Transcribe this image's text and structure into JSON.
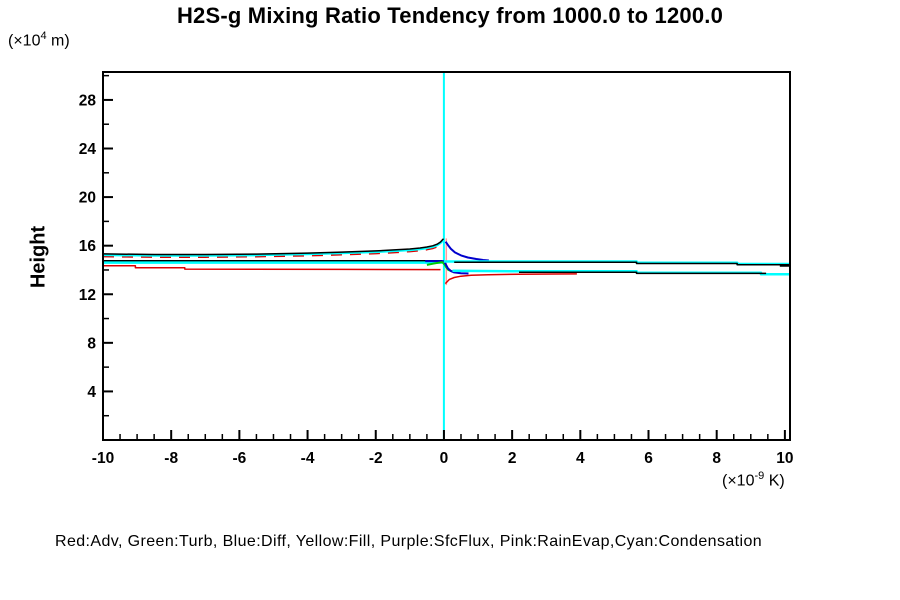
{
  "header": {
    "title": "H2S-g Mixing Ratio Tendency from 1000.0 to 1200.0"
  },
  "units": {
    "y": {
      "prefix": "(×10",
      "sup": "4",
      "suffix": " m)"
    },
    "x": {
      "prefix": "(×10",
      "sup": "-9",
      "suffix": " K)"
    }
  },
  "ylabel": "Height",
  "legend": {
    "text": "Red:Adv, Green:Turb, Blue:Diff, Yellow:Fill, Purple:SfcFlux, Pink:RainEvap,Cyan:Condensation"
  },
  "colors": {
    "black": "#000000",
    "red": "#DC0000",
    "green": "#00C800",
    "blue": "#0000CD",
    "cyan": "#00FFFF",
    "pink": "#FF9B9B"
  },
  "chart_data": {
    "type": "line",
    "title": "H2S-g Mixing Ratio Tendency from 1000.0 to 1200.0",
    "xlabel": "(x10^-9 K)",
    "ylabel": "Height (x10^4 m)",
    "legend_position": "bottom",
    "grid": false,
    "axes": {
      "xmin": -10,
      "xmax": 10.15,
      "ymin": 0,
      "ymax": 30.3,
      "x_major": {
        "values": [
          -10,
          -8,
          -6,
          -4,
          -2,
          0,
          2,
          4,
          6,
          8,
          10
        ],
        "labels": [
          "-10",
          "-8",
          "-6",
          "-4",
          "-2",
          "0",
          "2",
          "4",
          "6",
          "8",
          "10"
        ]
      },
      "x_minor_step": 0.5,
      "y_major": {
        "values": [
          4,
          8,
          12,
          16,
          20,
          24,
          28
        ],
        "labels": [
          "4",
          "8",
          "12",
          "16",
          "20",
          "24",
          "28"
        ]
      },
      "y_minor_step": 2
    },
    "series": [
      {
        "name": "condensation-zero-line",
        "color": "cyan",
        "width": 2,
        "points": [
          [
            0,
            0
          ],
          [
            0,
            30.28
          ]
        ]
      },
      {
        "name": "rainevap-spike",
        "color": "pink",
        "width": 1.5,
        "points": [
          [
            0.07,
            12.75
          ],
          [
            0.07,
            16.6
          ]
        ]
      },
      {
        "name": "adv-rise-left",
        "color": "red",
        "width": 1.5,
        "dash": "11 8",
        "points": [
          [
            -10,
            15.1
          ],
          [
            -8.5,
            15.05
          ],
          [
            -7,
            15.05
          ],
          [
            -5.5,
            15.09
          ],
          [
            -4,
            15.17
          ],
          [
            -3,
            15.25
          ],
          [
            -2,
            15.35
          ],
          [
            -1.4,
            15.44
          ],
          [
            -1,
            15.51
          ],
          [
            -0.7,
            15.59
          ],
          [
            -0.5,
            15.67
          ],
          [
            -0.33,
            15.77
          ],
          [
            -0.2,
            15.9
          ],
          [
            -0.1,
            16.08
          ],
          [
            -0.04,
            16.28
          ]
        ]
      },
      {
        "name": "condensation-rise-left",
        "color": "cyan",
        "width": 2,
        "points": [
          [
            -10,
            15.22
          ],
          [
            -8.5,
            15.17
          ],
          [
            -7,
            15.17
          ],
          [
            -5.5,
            15.21
          ],
          [
            -4,
            15.29
          ],
          [
            -3,
            15.37
          ],
          [
            -2,
            15.47
          ],
          [
            -1.4,
            15.56
          ],
          [
            -1,
            15.63
          ],
          [
            -0.7,
            15.71
          ],
          [
            -0.5,
            15.79
          ],
          [
            -0.33,
            15.89
          ],
          [
            -0.2,
            16.02
          ],
          [
            -0.1,
            16.2
          ],
          [
            -0.04,
            16.4
          ],
          [
            -0.01,
            16.47
          ]
        ]
      },
      {
        "name": "total-rise-left",
        "color": "black",
        "width": 1.5,
        "points": [
          [
            -10,
            15.32
          ],
          [
            -8.5,
            15.27
          ],
          [
            -7,
            15.27
          ],
          [
            -5.5,
            15.31
          ],
          [
            -4,
            15.39
          ],
          [
            -3,
            15.47
          ],
          [
            -2,
            15.57
          ],
          [
            -1.4,
            15.66
          ],
          [
            -1,
            15.73
          ],
          [
            -0.7,
            15.81
          ],
          [
            -0.5,
            15.89
          ],
          [
            -0.33,
            15.99
          ],
          [
            -0.2,
            16.12
          ],
          [
            -0.1,
            16.3
          ],
          [
            -0.04,
            16.5
          ],
          [
            -0.01,
            16.57
          ]
        ]
      },
      {
        "name": "total-mid-left",
        "color": "black",
        "width": 1.5,
        "points": [
          [
            -10,
            14.76
          ],
          [
            -0.05,
            14.76
          ]
        ]
      },
      {
        "name": "condensation-mid-left",
        "color": "cyan",
        "width": 2.5,
        "points": [
          [
            -10,
            14.61
          ],
          [
            -0.05,
            14.61
          ]
        ]
      },
      {
        "name": "adv-mid-left",
        "color": "red",
        "width": 1.5,
        "points": [
          [
            -10,
            14.35
          ],
          [
            -9.05,
            14.35
          ],
          [
            -9.05,
            14.19
          ],
          [
            -7.6,
            14.19
          ],
          [
            -7.6,
            14.07
          ],
          [
            -3,
            14.05
          ],
          [
            -0.1,
            14.03
          ]
        ]
      },
      {
        "name": "diff-left-segment",
        "color": "blue",
        "width": 2,
        "points": [
          [
            -0.55,
            14.73
          ],
          [
            0,
            14.73
          ]
        ]
      },
      {
        "name": "turb-spike",
        "color": "green",
        "width": 2,
        "points": [
          [
            -0.5,
            14.42
          ],
          [
            -0.32,
            14.52
          ],
          [
            -0.15,
            14.6
          ],
          [
            -0.05,
            14.65
          ],
          [
            0.02,
            14.45
          ],
          [
            0.07,
            14.2
          ],
          [
            0.13,
            14.0
          ],
          [
            0.22,
            13.9
          ],
          [
            0.32,
            13.87
          ]
        ]
      },
      {
        "name": "diff-upper-right",
        "color": "blue",
        "width": 2,
        "points": [
          [
            0.05,
            16.33
          ],
          [
            0.12,
            16.05
          ],
          [
            0.2,
            15.75
          ],
          [
            0.32,
            15.45
          ],
          [
            0.5,
            15.2
          ],
          [
            0.7,
            15.03
          ],
          [
            0.95,
            14.9
          ],
          [
            1.15,
            14.82
          ],
          [
            1.32,
            14.78
          ]
        ]
      },
      {
        "name": "diff-lower-right",
        "color": "blue",
        "width": 2,
        "points": [
          [
            0.02,
            14.66
          ],
          [
            0.07,
            14.38
          ],
          [
            0.12,
            14.12
          ],
          [
            0.2,
            13.92
          ],
          [
            0.3,
            13.8
          ],
          [
            0.5,
            13.73
          ],
          [
            0.72,
            13.71
          ]
        ]
      },
      {
        "name": "condensation-mid-right",
        "color": "cyan",
        "width": 2.5,
        "points": [
          [
            0,
            14.7
          ],
          [
            5.65,
            14.7
          ],
          [
            5.65,
            14.59
          ],
          [
            8.6,
            14.59
          ],
          [
            8.6,
            14.49
          ],
          [
            10.15,
            14.49
          ]
        ]
      },
      {
        "name": "total-mid-right",
        "color": "black",
        "width": 1.5,
        "points": [
          [
            0.3,
            14.63
          ],
          [
            5.65,
            14.63
          ],
          [
            5.65,
            14.53
          ],
          [
            8.6,
            14.53
          ],
          [
            8.6,
            14.43
          ],
          [
            10.15,
            14.43
          ]
        ]
      },
      {
        "name": "total-edge-dash",
        "color": "black",
        "width": 1.5,
        "points": [
          [
            9.85,
            14.33
          ],
          [
            10.15,
            14.33
          ]
        ]
      },
      {
        "name": "condensation-lower-right",
        "color": "cyan",
        "width": 2.5,
        "points": [
          [
            0.25,
            13.93
          ],
          [
            2,
            13.89
          ],
          [
            5.65,
            13.89
          ],
          [
            5.65,
            13.77
          ],
          [
            9.3,
            13.77
          ],
          [
            9.3,
            13.65
          ],
          [
            10.15,
            13.65
          ]
        ]
      },
      {
        "name": "total-lower-right",
        "color": "black",
        "width": 1.5,
        "points": [
          [
            2.2,
            13.82
          ],
          [
            5.65,
            13.82
          ],
          [
            5.65,
            13.72
          ],
          [
            9.45,
            13.72
          ]
        ]
      },
      {
        "name": "adv-lower-right",
        "color": "red",
        "width": 1.5,
        "points": [
          [
            0.04,
            12.88
          ],
          [
            0.09,
            13.02
          ],
          [
            0.16,
            13.22
          ],
          [
            0.3,
            13.38
          ],
          [
            0.5,
            13.49
          ],
          [
            0.8,
            13.56
          ],
          [
            1.3,
            13.61
          ],
          [
            2.2,
            13.65
          ],
          [
            3.2,
            13.67
          ],
          [
            3.9,
            13.68
          ]
        ]
      }
    ]
  }
}
